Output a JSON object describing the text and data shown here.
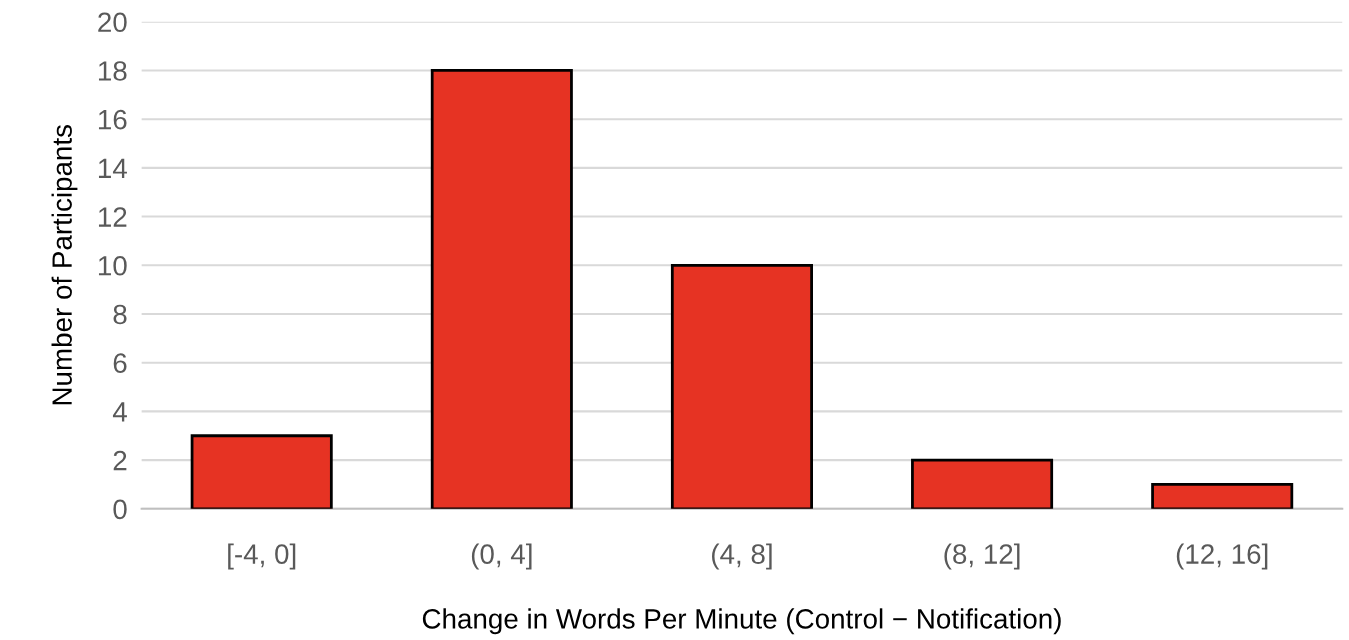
{
  "chart_data": {
    "type": "bar",
    "xlabel": "Change in Words Per Minute (Control − Notification)",
    "ylabel": "Number of Participants",
    "categories": [
      "[-4, 0]",
      "(0, 4]",
      "(4, 8]",
      "(8, 12]",
      "(12, 16]"
    ],
    "values": [
      3,
      18,
      10,
      2,
      1
    ],
    "color": "#e63323",
    "ylim": [
      0,
      20
    ],
    "yticks": [
      0,
      2,
      4,
      6,
      8,
      10,
      12,
      14,
      16,
      18,
      20
    ],
    "grid": "y",
    "legend": false
  }
}
